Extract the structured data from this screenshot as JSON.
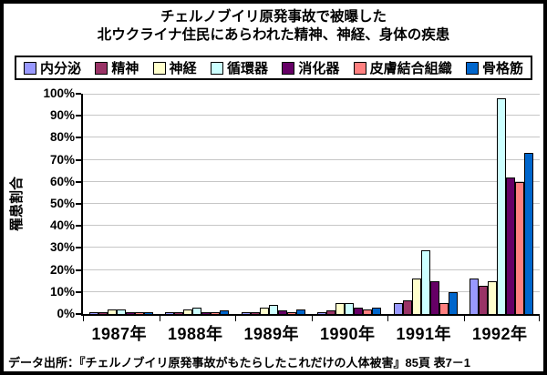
{
  "title": {
    "line1": "チェルノブイリ原発事故で被曝した",
    "line2": "北ウクライナ住民にあらわれた精神、神経、身体の疾患"
  },
  "footer": "データ出所：『チェルノブイリ原発事故がもたらしたこれだけの人体被害』85頁 表7－1",
  "chart_data": {
    "type": "bar",
    "title": "チェルノブイリ原発事故で被曝した北ウクライナ住民にあらわれた精神、神経、身体の疾患",
    "xlabel": "",
    "ylabel": "罹患割合",
    "ylim": [
      0,
      100
    ],
    "y_tick_step": 10,
    "y_tick_labels": [
      "0%",
      "10%",
      "20%",
      "30%",
      "40%",
      "50%",
      "60%",
      "70%",
      "80%",
      "90%",
      "100%"
    ],
    "grid": "horizontal",
    "legend_position": "top",
    "categories": [
      "1987年",
      "1988年",
      "1989年",
      "1990年",
      "1991年",
      "1992年"
    ],
    "series": [
      {
        "name": "内分泌",
        "color": "#9999FF",
        "values": [
          1,
          0.5,
          1,
          1,
          5,
          16
        ]
      },
      {
        "name": "精神",
        "color": "#993366",
        "values": [
          0.5,
          1,
          1,
          1.5,
          6,
          13
        ]
      },
      {
        "name": "神経",
        "color": "#FFFFCC",
        "values": [
          2,
          2,
          3,
          5,
          16,
          15
        ]
      },
      {
        "name": "循環器",
        "color": "#CCFFFF",
        "values": [
          2,
          3,
          4,
          5,
          29,
          98
        ]
      },
      {
        "name": "消化器",
        "color": "#660066",
        "values": [
          0.5,
          1,
          1.5,
          3,
          15,
          62
        ]
      },
      {
        "name": "皮膚結合組織",
        "color": "#FF8080",
        "values": [
          1,
          0.5,
          1,
          2,
          5,
          60
        ]
      },
      {
        "name": "骨格筋",
        "color": "#0066CC",
        "values": [
          1,
          1.5,
          2,
          3,
          10,
          73
        ]
      }
    ],
    "axis_color": "#000000",
    "gridline_color": "#c6c6c6",
    "plot_background": "#ffffff"
  }
}
